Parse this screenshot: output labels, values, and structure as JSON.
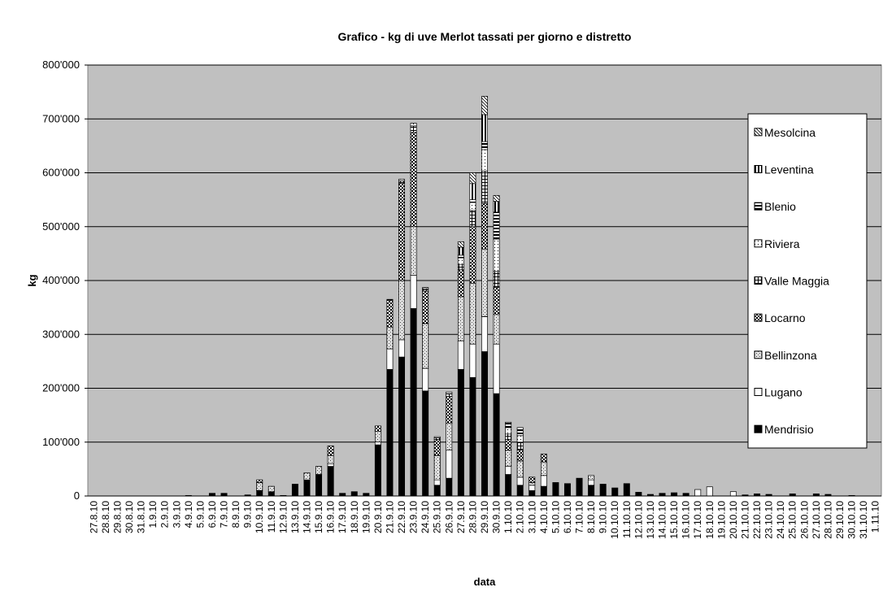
{
  "chart_data": {
    "type": "stacked_bar",
    "title": "Grafico  - kg di uve Merlot tassati per giorno e distretto",
    "ylabel": "kg",
    "xlabel": "data",
    "categories": [
      "27.8.10",
      "28.8.10",
      "29.8.10",
      "30.8.10",
      "31.8.10",
      "1.9.10",
      "2.9.10",
      "3.9.10",
      "4.9.10",
      "5.9.10",
      "6.9.10",
      "7.9.10",
      "8.9.10",
      "9.9.10",
      "10.9.10",
      "11.9.10",
      "12.9.10",
      "13.9.10",
      "14.9.10",
      "15.9.10",
      "16.9.10",
      "17.9.10",
      "18.9.10",
      "19.9.10",
      "20.9.10",
      "21.9.10",
      "22.9.10",
      "23.9.10",
      "24.9.10",
      "25.9.10",
      "26.9.10",
      "27.9.10",
      "28.9.10",
      "29.9.10",
      "30.9.10",
      "1.10.10",
      "2.10.10",
      "3.10.10",
      "4.10.10",
      "5.10.10",
      "6.10.10",
      "7.10.10",
      "8.10.10",
      "9.10.10",
      "10.10.10",
      "11.10.10",
      "12.10.10",
      "13.10.10",
      "14.10.10",
      "15.10.10",
      "16.10.10",
      "17.10.10",
      "18.10.10",
      "19.10.10",
      "20.10.10",
      "21.10.10",
      "22.10.10",
      "23.10.10",
      "24.10.10",
      "25.10.10",
      "26.10.10",
      "27.10.10",
      "28.10.10",
      "29.10.10",
      "30.10.10",
      "31.10.10",
      "1.11.10"
    ],
    "series": [
      {
        "name": "Mendrisio",
        "color": "#000000",
        "pattern": "solid",
        "values": [
          0,
          0,
          0,
          0,
          0,
          0,
          0,
          0,
          1000,
          0,
          5000,
          5000,
          0,
          2000,
          10000,
          8000,
          1000,
          22000,
          30000,
          40000,
          55000,
          5000,
          8000,
          5000,
          95000,
          235000,
          258000,
          348000,
          195000,
          20000,
          33000,
          235000,
          220000,
          268000,
          190000,
          40000,
          20000,
          10000,
          18000,
          25000,
          23000,
          33000,
          20000,
          22000,
          15000,
          23000,
          7000,
          3000,
          5000,
          6000,
          5000,
          0,
          0,
          0,
          0,
          2000,
          4000,
          3000,
          0,
          4000,
          0,
          4000,
          3000,
          0,
          1000,
          0,
          0
        ]
      },
      {
        "name": "Lugano",
        "color": "#ffffff",
        "pattern": "solid",
        "values": [
          0,
          0,
          0,
          0,
          0,
          0,
          0,
          0,
          0,
          0,
          0,
          0,
          0,
          0,
          0,
          0,
          0,
          0,
          0,
          0,
          5000,
          0,
          0,
          0,
          5000,
          38000,
          32000,
          62000,
          42000,
          10000,
          52000,
          53000,
          62000,
          65000,
          92000,
          15000,
          15000,
          10000,
          20000,
          0,
          0,
          0,
          10000,
          0,
          0,
          0,
          0,
          0,
          0,
          0,
          0,
          12000,
          17000,
          0,
          8000,
          0,
          0,
          0,
          0,
          0,
          0,
          0,
          0,
          0,
          0,
          0,
          0
        ]
      },
      {
        "name": "Bellinzona",
        "color": "#000000",
        "pattern": "crosshatch",
        "values": [
          0,
          0,
          0,
          0,
          0,
          0,
          0,
          0,
          0,
          0,
          0,
          0,
          0,
          0,
          15000,
          10000,
          0,
          0,
          13000,
          15000,
          15000,
          0,
          0,
          0,
          20000,
          40000,
          110000,
          90000,
          83000,
          45000,
          50000,
          82000,
          113000,
          125000,
          55000,
          30000,
          30000,
          5000,
          25000,
          0,
          0,
          0,
          8000,
          0,
          0,
          0,
          0,
          0,
          0,
          0,
          0,
          0,
          0,
          0,
          0,
          0,
          0,
          0,
          0,
          0,
          0,
          0,
          0,
          0,
          0,
          0,
          0
        ]
      },
      {
        "name": "Locarno",
        "color": "#000000",
        "pattern": "checker",
        "values": [
          0,
          0,
          0,
          0,
          0,
          0,
          0,
          0,
          0,
          0,
          0,
          0,
          0,
          0,
          5000,
          0,
          0,
          0,
          0,
          0,
          18000,
          0,
          0,
          0,
          10000,
          50000,
          180000,
          175000,
          60000,
          30000,
          50000,
          50000,
          105000,
          85000,
          50000,
          20000,
          20000,
          10000,
          15000,
          0,
          0,
          0,
          0,
          0,
          0,
          0,
          0,
          0,
          0,
          0,
          0,
          0,
          0,
          0,
          0,
          0,
          0,
          0,
          0,
          0,
          0,
          0,
          0,
          0,
          0,
          0,
          0
        ]
      },
      {
        "name": "Valle Maggia",
        "color": "#000000",
        "pattern": "grid",
        "values": [
          0,
          0,
          0,
          0,
          0,
          0,
          0,
          0,
          0,
          0,
          0,
          0,
          0,
          0,
          0,
          0,
          0,
          0,
          0,
          0,
          0,
          0,
          0,
          0,
          0,
          2000,
          5000,
          12000,
          5000,
          3000,
          5000,
          10000,
          30000,
          60000,
          30000,
          10000,
          15000,
          0,
          0,
          0,
          0,
          0,
          0,
          0,
          0,
          0,
          0,
          0,
          0,
          0,
          0,
          0,
          0,
          0,
          0,
          0,
          0,
          0,
          0,
          0,
          0,
          0,
          0,
          0,
          0,
          0,
          0
        ]
      },
      {
        "name": "Riviera",
        "color": "#000000",
        "pattern": "dots",
        "values": [
          0,
          0,
          0,
          0,
          0,
          0,
          0,
          0,
          0,
          0,
          0,
          0,
          0,
          0,
          0,
          0,
          0,
          0,
          0,
          0,
          0,
          0,
          0,
          0,
          0,
          0,
          3000,
          5000,
          2000,
          2000,
          3000,
          12000,
          15000,
          40000,
          60000,
          12000,
          12000,
          0,
          0,
          0,
          0,
          0,
          0,
          0,
          0,
          0,
          0,
          0,
          0,
          0,
          0,
          0,
          0,
          0,
          0,
          0,
          0,
          0,
          0,
          0,
          0,
          0,
          0,
          0,
          0,
          0,
          0
        ]
      },
      {
        "name": "Blenio",
        "color": "#000000",
        "pattern": "hstripes",
        "values": [
          0,
          0,
          0,
          0,
          0,
          0,
          0,
          0,
          0,
          0,
          0,
          0,
          0,
          0,
          0,
          0,
          0,
          0,
          0,
          0,
          0,
          0,
          0,
          0,
          0,
          0,
          0,
          0,
          0,
          0,
          0,
          5000,
          5000,
          15000,
          50000,
          10000,
          15000,
          0,
          0,
          0,
          0,
          0,
          0,
          0,
          0,
          0,
          0,
          0,
          0,
          0,
          0,
          0,
          0,
          0,
          0,
          0,
          0,
          0,
          0,
          0,
          0,
          0,
          0,
          0,
          0,
          0,
          0
        ]
      },
      {
        "name": "Leventina",
        "color": "#000000",
        "pattern": "vstripes",
        "values": [
          0,
          0,
          0,
          0,
          0,
          0,
          0,
          0,
          0,
          0,
          0,
          0,
          0,
          0,
          0,
          0,
          0,
          0,
          0,
          0,
          0,
          0,
          0,
          0,
          0,
          0,
          0,
          0,
          0,
          0,
          0,
          15000,
          30000,
          50000,
          20000,
          0,
          0,
          0,
          0,
          0,
          0,
          0,
          0,
          0,
          0,
          0,
          0,
          0,
          0,
          0,
          0,
          0,
          0,
          0,
          0,
          0,
          0,
          0,
          0,
          0,
          0,
          0,
          0,
          0,
          0,
          0,
          0
        ]
      },
      {
        "name": "Mesolcina",
        "color": "#000000",
        "pattern": "diagonal",
        "values": [
          0,
          0,
          0,
          0,
          0,
          0,
          0,
          0,
          0,
          0,
          0,
          0,
          0,
          0,
          0,
          0,
          0,
          0,
          0,
          0,
          0,
          0,
          0,
          0,
          0,
          0,
          0,
          0,
          0,
          0,
          0,
          10000,
          20000,
          34000,
          11000,
          0,
          0,
          0,
          0,
          0,
          0,
          0,
          0,
          0,
          0,
          0,
          0,
          0,
          0,
          0,
          0,
          0,
          0,
          0,
          0,
          0,
          0,
          0,
          0,
          0,
          0,
          0,
          0,
          0,
          0,
          0,
          0
        ]
      }
    ],
    "ylim": [
      0,
      800000
    ],
    "yticks": [
      0,
      {
        "value": 100000,
        "label": "100'000"
      },
      {
        "value": 200000,
        "label": "200'000"
      },
      {
        "value": 300000,
        "label": "300'000"
      },
      {
        "value": 400000,
        "label": "400'000"
      },
      {
        "value": 500000,
        "label": "500'000"
      },
      {
        "value": 600000,
        "label": "600'000"
      },
      {
        "value": 700000,
        "label": "700'000"
      },
      {
        "value": 800000,
        "label": "800'000"
      }
    ],
    "grid": true,
    "legend": "right"
  }
}
